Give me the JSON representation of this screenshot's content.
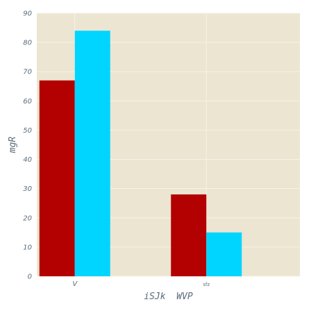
{
  "chart_data": {
    "type": "bar",
    "categories": [
      "V",
      "sfz"
    ],
    "series": [
      {
        "values": [
          67,
          28
        ],
        "color": "#b30000"
      },
      {
        "values": [
          84,
          15
        ],
        "color": "#00d5ff"
      }
    ],
    "xlabel": "iSJk  WVP",
    "ylabel": "mgR",
    "ylim": [
      0,
      90
    ],
    "yticks": [
      0,
      10,
      20,
      30,
      40,
      50,
      60,
      70,
      80,
      90
    ],
    "grid": true,
    "legend": false,
    "background": "#ebe5d2",
    "grid_color": "#f7f3e6"
  }
}
